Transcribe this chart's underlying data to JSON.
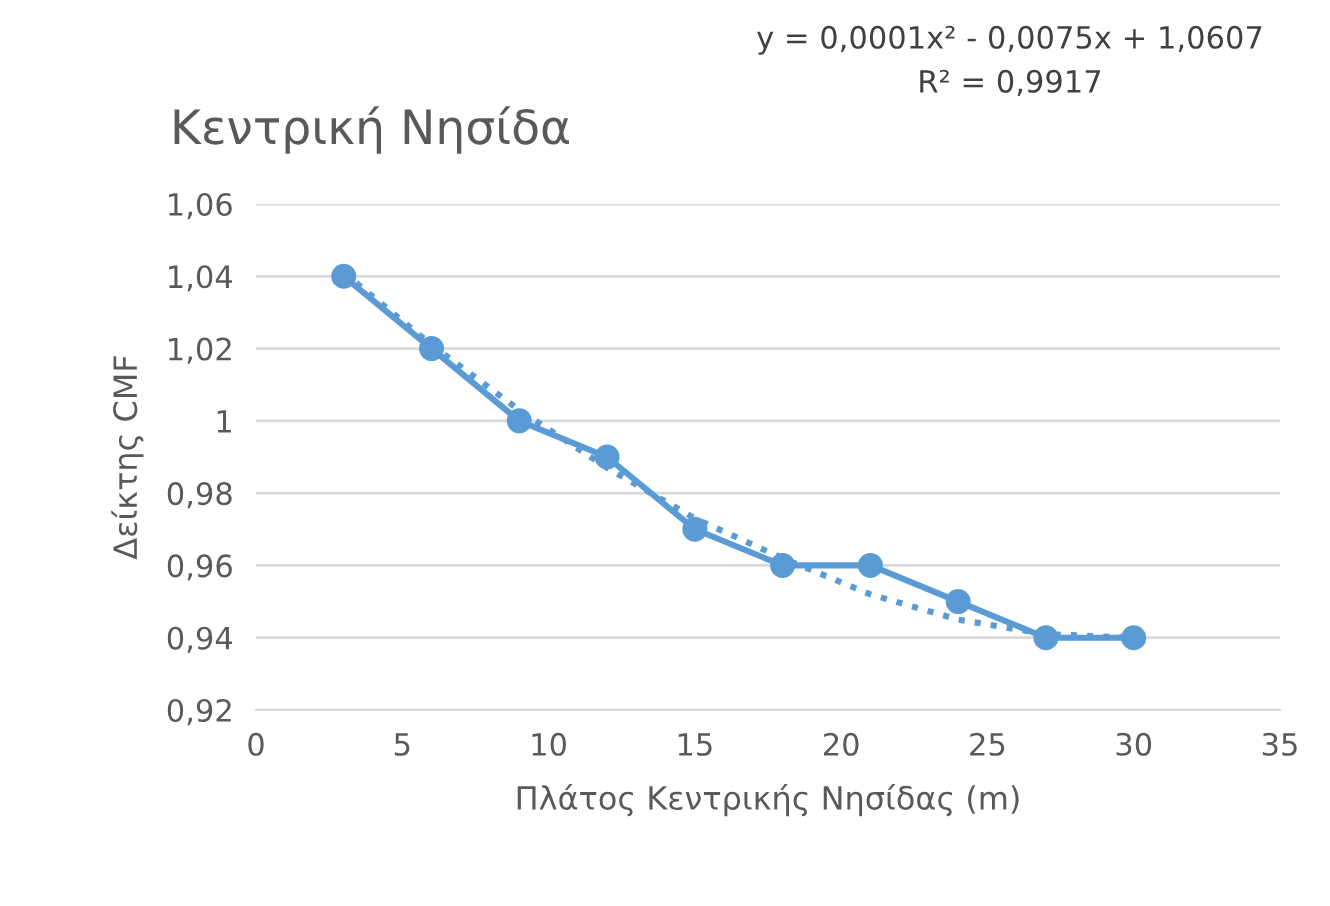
{
  "chart_data": {
    "type": "line",
    "title": "Κεντρική Νησίδα",
    "xlabel": "Πλάτος Κεντρικής Νησίδας (m)",
    "ylabel": "Δείκτης CMF",
    "annotations": [
      "y = 0,0001x² - 0,0075x + 1,0607",
      "R² = 0,9917"
    ],
    "x": [
      3,
      6,
      9,
      12,
      15,
      18,
      21,
      24,
      27,
      30
    ],
    "series": [
      {
        "color": "#5b9bd5",
        "values": [
          1.04,
          1.02,
          1.0,
          0.99,
          0.97,
          0.96,
          0.96,
          0.95,
          0.94,
          0.94
        ],
        "marker": "circle",
        "line_style": "solid"
      },
      {
        "type": "line",
        "color": "#5b9bd5",
        "x": [
          3,
          6,
          9,
          12,
          15,
          18,
          21,
          24,
          27,
          30
        ],
        "values": [
          1.041,
          1.021,
          1.003,
          0.987,
          0.973,
          0.962,
          0.952,
          0.945,
          0.941,
          0.94
        ],
        "marker": "none",
        "line_style": "dotted"
      }
    ],
    "xlim": [
      0,
      35
    ],
    "xticks": [
      0,
      5,
      10,
      15,
      20,
      25,
      30,
      35
    ],
    "ylim": [
      0.92,
      1.06
    ],
    "yticks": [
      {
        "value": 0.92,
        "label": "0,92"
      },
      {
        "value": 0.94,
        "label": "0,94"
      },
      {
        "value": 0.96,
        "label": "0,96"
      },
      {
        "value": 0.98,
        "label": "0,98"
      },
      {
        "value": 1,
        "label": "1"
      },
      {
        "value": 1.02,
        "label": "1,02"
      },
      {
        "value": 1.04,
        "label": "1,04"
      },
      {
        "value": 1.06,
        "label": "1,06"
      }
    ],
    "grid": "y",
    "legend": false
  }
}
